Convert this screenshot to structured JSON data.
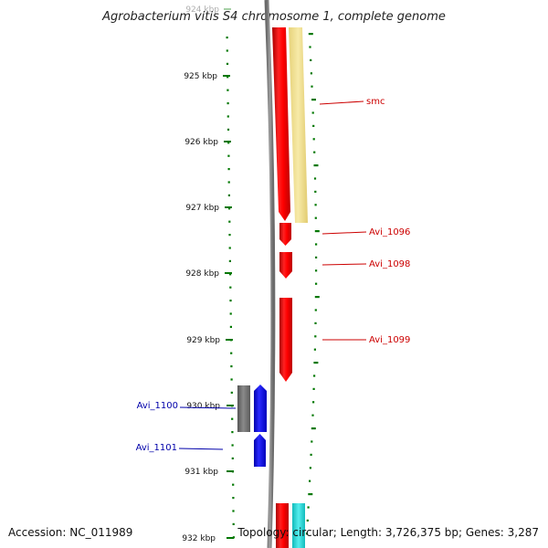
{
  "title": "Agrobacterium vitis S4 chromosome 1, complete genome",
  "accession": "Accession: NC_011989",
  "summary": "Topology: circular; Length: 3,726,375 bp; Genes: 3,287",
  "ticks": [
    "924 kbp",
    "925 kbp",
    "926 kbp",
    "927 kbp",
    "928 kbp",
    "929 kbp",
    "930 kbp",
    "931 kbp",
    "932 kbp"
  ],
  "colors": {
    "forward_gene": "#ff0000",
    "reverse_gene": "#0000ff",
    "pseudo_gene": "#777777",
    "smc_feature": "#f0e08c",
    "teal_feature": "#33dddd",
    "backbone": "#808080",
    "tick": "#007700",
    "label_forward": "#cc0000",
    "label_reverse": "#0000aa"
  },
  "genes": [
    {
      "name": "smc",
      "strand": "forward"
    },
    {
      "name": "Avi_1096",
      "strand": "forward"
    },
    {
      "name": "Avi_1098",
      "strand": "forward"
    },
    {
      "name": "Avi_1099",
      "strand": "forward"
    },
    {
      "name": "Avi_1100",
      "strand": "reverse"
    },
    {
      "name": "Avi_1101",
      "strand": "reverse"
    }
  ]
}
